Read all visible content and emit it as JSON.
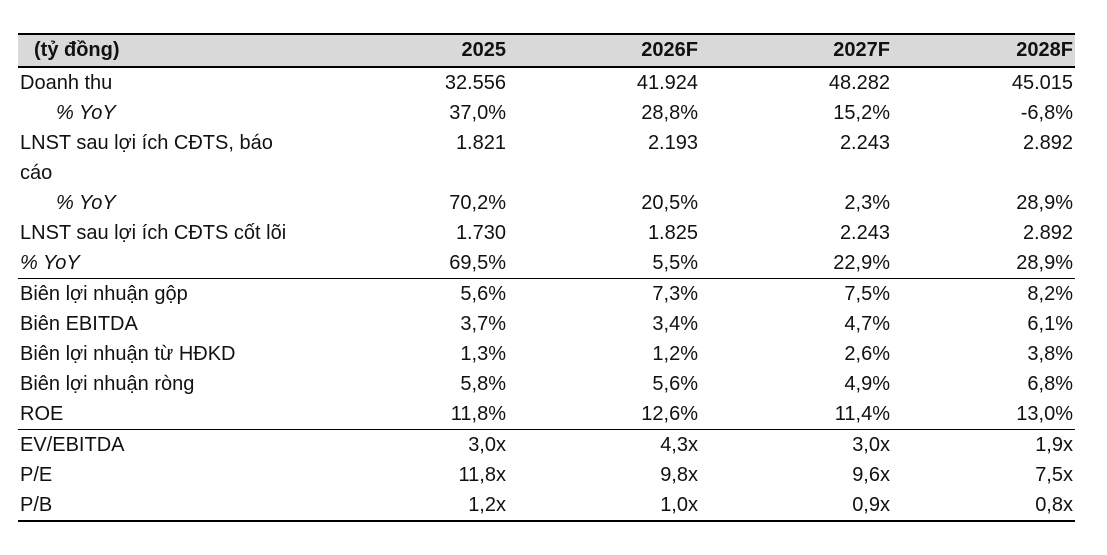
{
  "table": {
    "header": {
      "label": "(tỷ đồng)",
      "years": [
        "2025",
        "2026F",
        "2027F",
        "2028F"
      ]
    },
    "rows": [
      {
        "label": "Doanh thu",
        "values": [
          "32.556",
          "41.924",
          "48.282",
          "45.015"
        ]
      },
      {
        "label": "% YoY",
        "values": [
          "37,0%",
          "28,8%",
          "15,2%",
          "-6,8%"
        ]
      },
      {
        "label": "LNST sau lợi ích CĐTS, báo",
        "label2": "cáo",
        "values": [
          "1.821",
          "2.193",
          "2.243",
          "2.892"
        ]
      },
      {
        "label": "% YoY",
        "values": [
          "70,2%",
          "20,5%",
          "2,3%",
          "28,9%"
        ]
      },
      {
        "label": "LNST sau lợi ích CĐTS cốt lõi",
        "values": [
          "1.730",
          "1.825",
          "2.243",
          "2.892"
        ]
      },
      {
        "label": "% YoY",
        "values": [
          "69,5%",
          "5,5%",
          "22,9%",
          "28,9%"
        ]
      },
      {
        "label": "Biên lợi nhuận gộp",
        "values": [
          "5,6%",
          "7,3%",
          "7,5%",
          "8,2%"
        ]
      },
      {
        "label": "Biên EBITDA",
        "values": [
          "3,7%",
          "3,4%",
          "4,7%",
          "6,1%"
        ]
      },
      {
        "label": "Biên lợi nhuận từ HĐKD",
        "values": [
          "1,3%",
          "1,2%",
          "2,6%",
          "3,8%"
        ]
      },
      {
        "label": "Biên lợi nhuận ròng",
        "values": [
          "5,8%",
          "5,6%",
          "4,9%",
          "6,8%"
        ]
      },
      {
        "label": "ROE",
        "values": [
          "11,8%",
          "12,6%",
          "11,4%",
          "13,0%"
        ]
      },
      {
        "label": "EV/EBITDA",
        "values": [
          "3,0x",
          "4,3x",
          "3,0x",
          "1,9x"
        ]
      },
      {
        "label": "P/E",
        "values": [
          "11,8x",
          "9,8x",
          "9,6x",
          "7,5x"
        ]
      },
      {
        "label": "P/B",
        "values": [
          "1,2x",
          "1,0x",
          "0,9x",
          "0,8x"
        ]
      }
    ]
  }
}
